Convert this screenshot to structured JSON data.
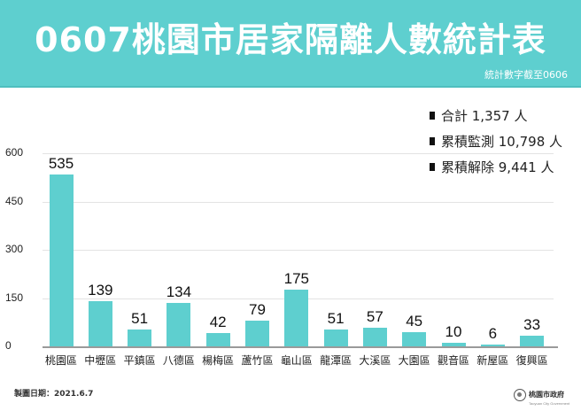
{
  "header": {
    "title": "0607桃園市居家隔離人數統計表",
    "subtitle": "統計數字截至0606",
    "background_color": "#5ecfcf"
  },
  "stats": [
    {
      "label": "合計 1,357 人"
    },
    {
      "label": "累積監測 10,798 人"
    },
    {
      "label": "累積解除 9,441 人"
    }
  ],
  "footer": {
    "date_label": "製圖日期：2021.6.7",
    "logo_text": "桃園市政府",
    "logo_subtext": "Taoyuan City Government"
  },
  "chart_data": {
    "type": "bar",
    "title": "0607桃園市居家隔離人數統計表",
    "subtitle": "統計數字截至0606",
    "xlabel": "",
    "ylabel": "",
    "ylim": [
      0,
      600
    ],
    "yticks": [
      "0",
      "150",
      "300",
      "450",
      "600"
    ],
    "grid": true,
    "legend": null,
    "bar_color": "#5ecfcf",
    "categories": [
      "桃園區",
      "中壢區",
      "平鎮區",
      "八德區",
      "楊梅區",
      "蘆竹區",
      "龜山區",
      "龍潭區",
      "大溪區",
      "大園區",
      "觀音區",
      "新屋區",
      "復興區"
    ],
    "values": [
      535,
      139,
      51,
      134,
      42,
      79,
      175,
      51,
      57,
      45,
      10,
      6,
      33
    ],
    "value_labels": [
      "535",
      "139",
      "51",
      "134",
      "42",
      "79",
      "175",
      "51",
      "57",
      "45",
      "10",
      "6",
      "33"
    ]
  }
}
